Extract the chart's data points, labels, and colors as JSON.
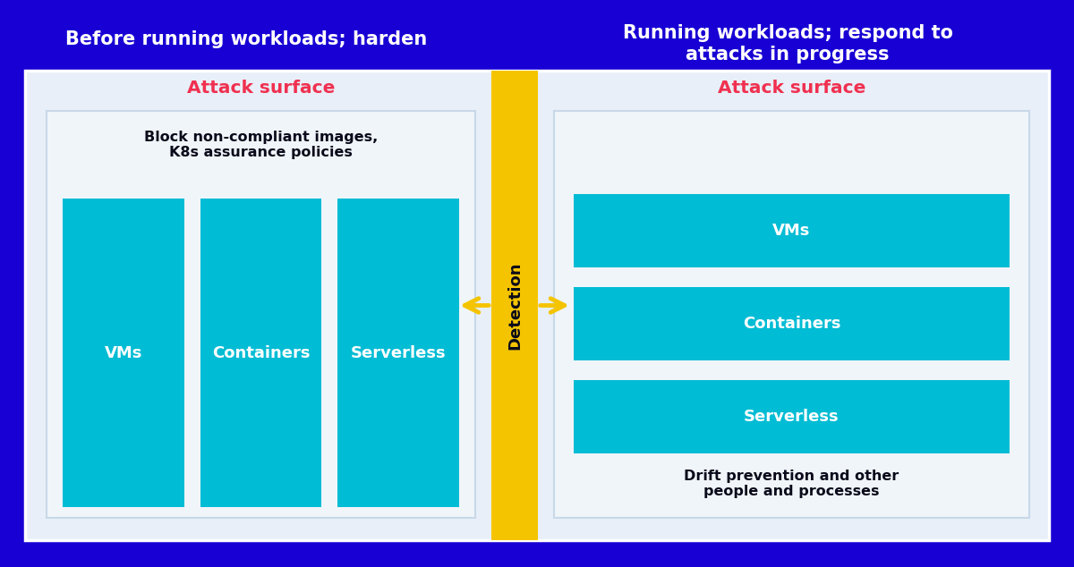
{
  "bg_color": "#1800d4",
  "panel_bg": "#e8eff8",
  "inner_box_bg": "#f0f5fa",
  "teal_color": "#00bcd4",
  "yellow_color": "#f5c400",
  "red_color": "#f03050",
  "white": "#ffffff",
  "black": "#0a0a1a",
  "left_title": "Before running workloads; harden",
  "right_title": "Running workloads; respond to\nattacks in progress",
  "attack_surface_label": "Attack surface",
  "left_boxes": [
    "VMs",
    "Containers",
    "Serverless"
  ],
  "right_boxes": [
    "VMs",
    "Containers",
    "Serverless"
  ],
  "left_caption": "Block non-compliant images,\nK8s assurance policies",
  "right_caption": "Drift prevention and other\npeople and processes",
  "detection_label": "Detection",
  "fig_w": 12.0,
  "fig_h": 6.34,
  "dpi": 100
}
